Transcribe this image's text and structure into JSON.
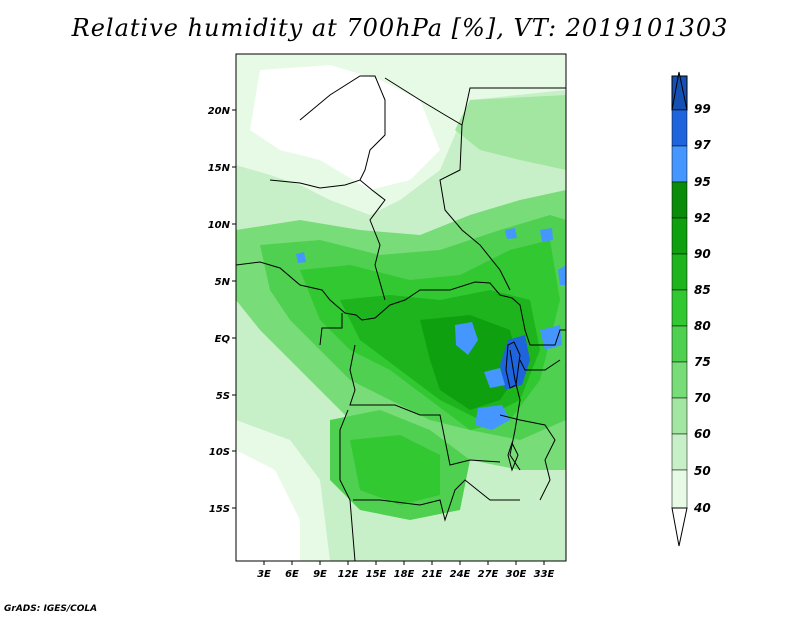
{
  "title": "Relative humidity at 700hPa [%], VT: 2019101303",
  "footer": "GrADS: IGES/COLA",
  "map": {
    "lat_labels": [
      "20N",
      "15N",
      "10N",
      "5N",
      "EQ",
      "5S",
      "10S",
      "15S"
    ],
    "lon_labels": [
      "3E",
      "6E",
      "9E",
      "12E",
      "15E",
      "18E",
      "21E",
      "24E",
      "27E",
      "30E",
      "33E"
    ]
  },
  "colorbar": {
    "levels": [
      "40",
      "50",
      "60",
      "70",
      "75",
      "80",
      "85",
      "90",
      "92",
      "95",
      "97",
      "99"
    ],
    "colors": [
      "#ffffff",
      "#e6fae6",
      "#c8f0c8",
      "#a2e6a2",
      "#78dc78",
      "#50d050",
      "#32c832",
      "#1eb41e",
      "#0fa00f",
      "#0a8c0a",
      "#4696ff",
      "#1e64dc",
      "#1450b4"
    ]
  }
}
